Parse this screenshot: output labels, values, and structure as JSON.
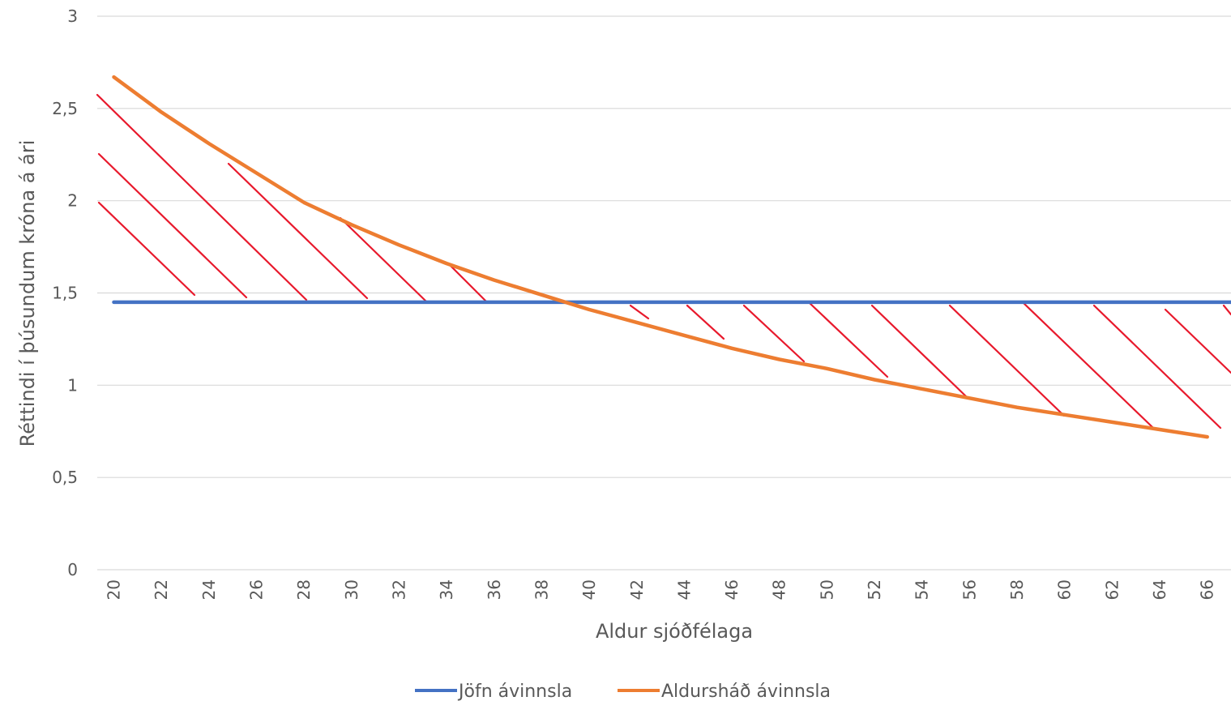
{
  "chart_data": {
    "type": "line",
    "title": "",
    "xlabel": "Aldur sjóðfélaga",
    "ylabel": "Réttindi í þúsundum króna á ári",
    "x_tick_labels": [
      "20",
      "22",
      "24",
      "26",
      "28",
      "30",
      "32",
      "34",
      "36",
      "38",
      "40",
      "42",
      "44",
      "46",
      "48",
      "50",
      "52",
      "54",
      "56",
      "58",
      "60",
      "62",
      "64",
      "66"
    ],
    "y_tick_labels": [
      "0",
      "0,5",
      "1",
      "1,5",
      "2",
      "2,5",
      "3"
    ],
    "y_ticks": [
      0,
      0.5,
      1,
      1.5,
      2,
      2.5,
      3
    ],
    "ylim": [
      0,
      3
    ],
    "xlim": [
      19.3,
      67
    ],
    "grid": "horizontal",
    "legend_position": "bottom",
    "x": [
      20,
      22,
      24,
      26,
      28,
      30,
      32,
      34,
      36,
      38,
      40,
      42,
      44,
      46,
      48,
      50,
      52,
      54,
      56,
      58,
      60,
      62,
      64,
      66
    ],
    "series": [
      {
        "name": "Jöfn ávinnsla",
        "color": "#4472C4",
        "values": [
          1.45,
          1.45,
          1.45,
          1.45,
          1.45,
          1.45,
          1.45,
          1.45,
          1.45,
          1.45,
          1.45,
          1.45,
          1.45,
          1.45,
          1.45,
          1.45,
          1.45,
          1.45,
          1.45,
          1.45,
          1.45,
          1.45,
          1.45,
          1.45
        ]
      },
      {
        "name": "Aldursháð ávinnsla",
        "color": "#ED7D31",
        "values": [
          2.67,
          2.48,
          2.31,
          2.15,
          1.99,
          1.87,
          1.76,
          1.66,
          1.57,
          1.49,
          1.41,
          1.34,
          1.27,
          1.2,
          1.14,
          1.09,
          1.03,
          0.98,
          0.93,
          0.88,
          0.84,
          0.8,
          0.76,
          0.72
        ]
      }
    ],
    "hatch_color": "#E8192C"
  }
}
